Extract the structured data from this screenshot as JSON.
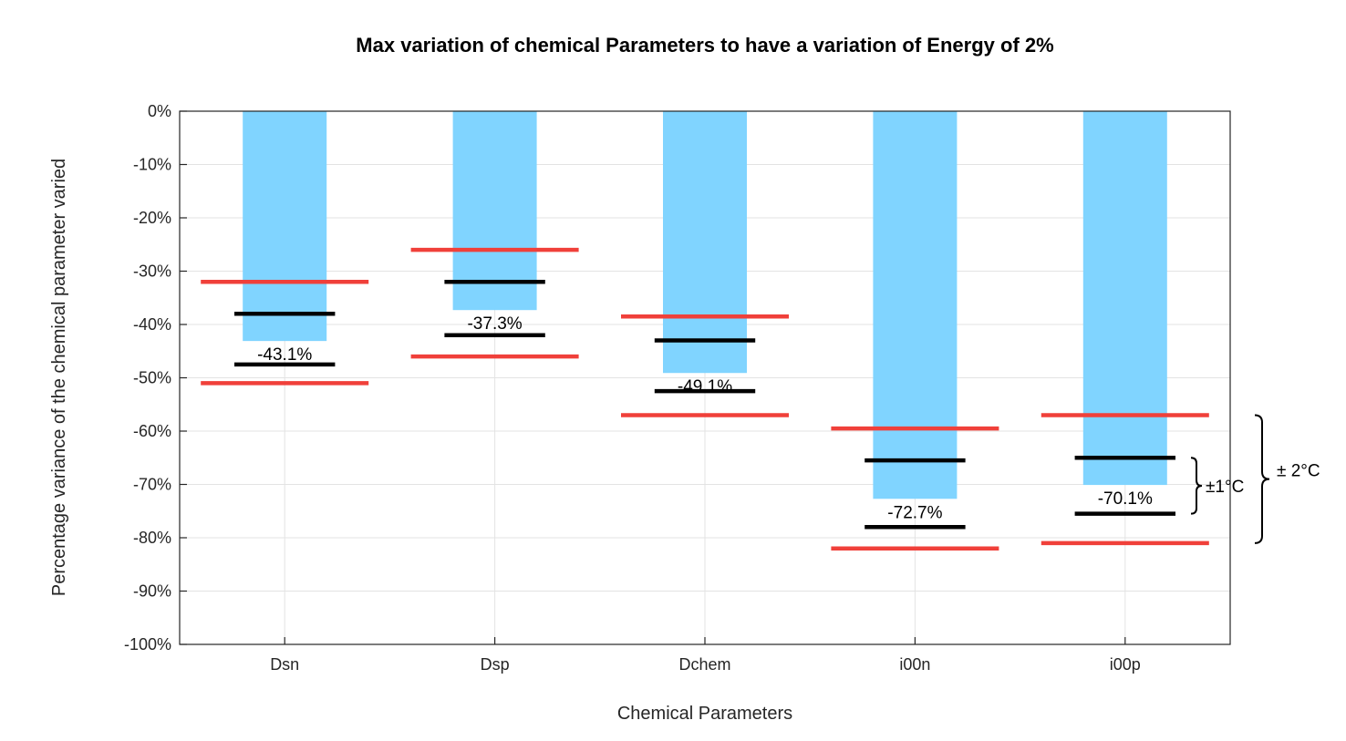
{
  "chart_data": {
    "type": "bar",
    "title": "Max variation of chemical Parameters to have a variation of Energy of 2%",
    "xlabel": "Chemical Parameters",
    "ylabel": "Percentage variance of the chemical parameter varied",
    "categories": [
      "Dsn",
      "Dsp",
      "Dchem",
      "i00n",
      "i00p"
    ],
    "values": [
      -43.1,
      -37.3,
      -49.1,
      -72.7,
      -70.1
    ],
    "value_labels": [
      "-43.1%",
      "-37.3%",
      "-49.1%",
      "-72.7%",
      "-70.1%"
    ],
    "ylim": [
      -100,
      0
    ],
    "yticks": [
      0,
      -10,
      -20,
      -30,
      -40,
      -50,
      -60,
      -70,
      -80,
      -90,
      -100
    ],
    "ytick_labels": [
      "0%",
      "-10%",
      "-20%",
      "-30%",
      "-40%",
      "-50%",
      "-60%",
      "-70%",
      "-80%",
      "-90%",
      "-100%"
    ],
    "bounds_1C": [
      {
        "upper": -38.0,
        "lower": -47.5
      },
      {
        "upper": -32.0,
        "lower": -42.0
      },
      {
        "upper": -43.0,
        "lower": -52.5
      },
      {
        "upper": -65.5,
        "lower": -78.0
      },
      {
        "upper": -65.0,
        "lower": -75.5
      }
    ],
    "bounds_2C": [
      {
        "upper": -32.0,
        "lower": -51.0
      },
      {
        "upper": -26.0,
        "lower": -46.0
      },
      {
        "upper": -38.5,
        "lower": -57.0
      },
      {
        "upper": -59.5,
        "lower": -82.0
      },
      {
        "upper": -57.0,
        "lower": -81.0
      }
    ],
    "annotations": {
      "bracket_1C": "±1°C",
      "bracket_2C": "± 2°C"
    },
    "grid": true,
    "colors": {
      "bar": "#80D4FF",
      "bound_1C": "#000000",
      "bound_2C": "#F0403A",
      "grid": "#E3E3E3",
      "axis": "#262626"
    }
  }
}
